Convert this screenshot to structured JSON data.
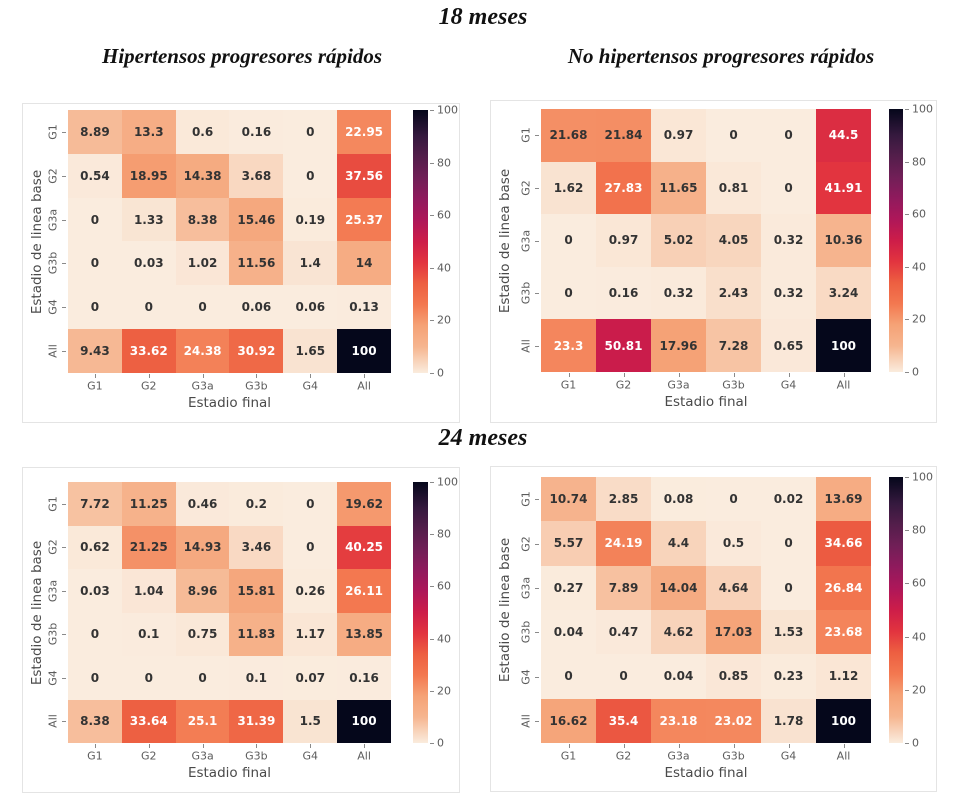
{
  "page": {
    "title_top": "18 meses",
    "title_middle": "24 meses",
    "subtitle_left": "Hipertensos progresores rápidos",
    "subtitle_right": "No hipertensos progresores rápidos"
  },
  "colors": {
    "background": "#ffffff",
    "panel_border": "#e4e4e4",
    "annot_dark": "#333333",
    "annot_light": "#ffffff",
    "tick_label": "#5c5c5c",
    "axis_label": "#4a4a4a",
    "colormap_low": "#faecde",
    "colormap_mid": "#e23442",
    "colormap_high": "#05071b"
  },
  "chart_data": [
    {
      "type": "heatmap",
      "group": "18 meses",
      "title": "Hipertensos progresores rápidos",
      "xlabel": "Estadio final",
      "ylabel": "Estadio de linea base",
      "x_categories": [
        "G1",
        "G2",
        "G3a",
        "G3b",
        "G4",
        "All"
      ],
      "y_categories": [
        "G1",
        "G2",
        "G3a",
        "G3b",
        "G4",
        "All"
      ],
      "values": [
        [
          8.89,
          13.3,
          0.6,
          0.16,
          0,
          22.95
        ],
        [
          0.54,
          18.95,
          14.38,
          3.68,
          0,
          37.56
        ],
        [
          0,
          1.33,
          8.38,
          15.46,
          0.19,
          25.37
        ],
        [
          0,
          0.03,
          1.02,
          11.56,
          1.4,
          14
        ],
        [
          0,
          0,
          0,
          0.06,
          0.06,
          0.13
        ],
        [
          9.43,
          33.62,
          24.38,
          30.92,
          1.65,
          100
        ]
      ],
      "vmin": 0,
      "vmax": 100,
      "colorbar_ticks": [
        0,
        20,
        40,
        60,
        80,
        100
      ],
      "colormap": "rocket_r",
      "legend_position": "right"
    },
    {
      "type": "heatmap",
      "group": "18 meses",
      "title": "No hipertensos progresores rápidos",
      "xlabel": "Estadio final",
      "ylabel": "Estadio de linea base",
      "x_categories": [
        "G1",
        "G2",
        "G3a",
        "G3b",
        "G4",
        "All"
      ],
      "y_categories": [
        "G1",
        "G2",
        "G3a",
        "G3b",
        "All"
      ],
      "values": [
        [
          21.68,
          21.84,
          0.97,
          0,
          0,
          44.5
        ],
        [
          1.62,
          27.83,
          11.65,
          0.81,
          0,
          41.91
        ],
        [
          0,
          0.97,
          5.02,
          4.05,
          0.32,
          10.36
        ],
        [
          0,
          0.16,
          0.32,
          2.43,
          0.32,
          3.24
        ],
        [
          23.3,
          50.81,
          17.96,
          7.28,
          0.65,
          100
        ]
      ],
      "vmin": 0,
      "vmax": 100,
      "colorbar_ticks": [
        0,
        20,
        40,
        60,
        80,
        100
      ],
      "colormap": "rocket_r",
      "legend_position": "right"
    },
    {
      "type": "heatmap",
      "group": "24 meses",
      "title": "Hipertensos progresores rápidos",
      "xlabel": "Estadio final",
      "ylabel": "Estadio de linea base",
      "x_categories": [
        "G1",
        "G2",
        "G3a",
        "G3b",
        "G4",
        "All"
      ],
      "y_categories": [
        "G1",
        "G2",
        "G3a",
        "G3b",
        "G4",
        "All"
      ],
      "values": [
        [
          7.72,
          11.25,
          0.46,
          0.2,
          0,
          19.62
        ],
        [
          0.62,
          21.25,
          14.93,
          3.46,
          0,
          40.25
        ],
        [
          0.03,
          1.04,
          8.96,
          15.81,
          0.26,
          26.11
        ],
        [
          0,
          0.1,
          0.75,
          11.83,
          1.17,
          13.85
        ],
        [
          0,
          0,
          0,
          0.1,
          0.07,
          0.16
        ],
        [
          8.38,
          33.64,
          25.1,
          31.39,
          1.5,
          100
        ]
      ],
      "vmin": 0,
      "vmax": 100,
      "colorbar_ticks": [
        0,
        20,
        40,
        60,
        80,
        100
      ],
      "colormap": "rocket_r",
      "legend_position": "right"
    },
    {
      "type": "heatmap",
      "group": "24 meses",
      "title": "No hipertensos progresores rápidos",
      "xlabel": "Estadio final",
      "ylabel": "Estadio de linea base",
      "x_categories": [
        "G1",
        "G2",
        "G3a",
        "G3b",
        "G4",
        "All"
      ],
      "y_categories": [
        "G1",
        "G2",
        "G3a",
        "G3b",
        "G4",
        "All"
      ],
      "values": [
        [
          10.74,
          2.85,
          0.08,
          0,
          0.02,
          13.69
        ],
        [
          5.57,
          24.19,
          4.4,
          0.5,
          0,
          34.66
        ],
        [
          0.27,
          7.89,
          14.04,
          4.64,
          0,
          26.84
        ],
        [
          0.04,
          0.47,
          4.62,
          17.03,
          1.53,
          23.68
        ],
        [
          0,
          0,
          0.04,
          0.85,
          0.23,
          1.12
        ],
        [
          16.62,
          35.4,
          23.18,
          23.02,
          1.78,
          100
        ]
      ],
      "vmin": 0,
      "vmax": 100,
      "colorbar_ticks": [
        0,
        20,
        40,
        60,
        80,
        100
      ],
      "colormap": "rocket_r",
      "legend_position": "right"
    }
  ]
}
